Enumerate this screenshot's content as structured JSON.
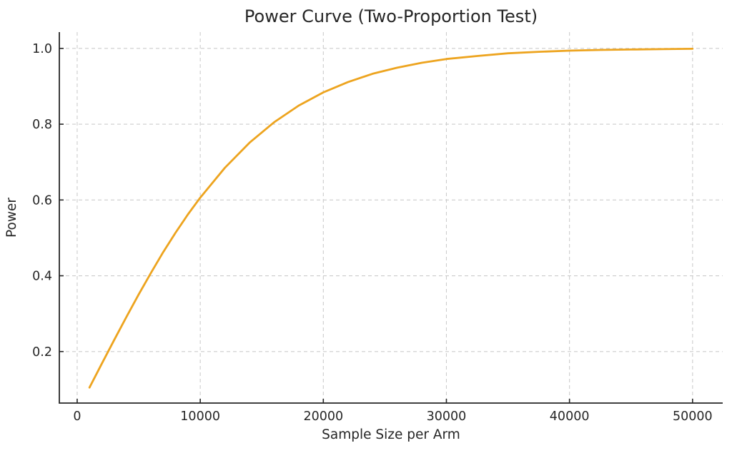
{
  "chart_data": {
    "type": "line",
    "title": "Power Curve (Two-Proportion Test)",
    "xlabel": "Sample Size per Arm",
    "ylabel": "Power",
    "x_ticks": [
      0,
      10000,
      20000,
      30000,
      40000,
      50000
    ],
    "x_tick_labels": [
      "0",
      "10000",
      "20000",
      "30000",
      "40000",
      "50000"
    ],
    "y_ticks": [
      0.2,
      0.4,
      0.6,
      0.8,
      1.0
    ],
    "y_tick_labels": [
      "0.2",
      "0.4",
      "0.6",
      "0.8",
      "1.0"
    ],
    "xlim": [
      -1450,
      52450
    ],
    "ylim": [
      0.064,
      1.043
    ],
    "grid": true,
    "grid_style": "dashed",
    "legend_position": "none",
    "line_color": "#EDA41F",
    "grid_color": "#cccccc",
    "axis_color": "#262626",
    "text_color": "#262626",
    "background_color": "#ffffff",
    "series": [
      {
        "name": "power",
        "x": [
          1000,
          2000,
          3000,
          4000,
          5000,
          6000,
          7000,
          8000,
          9000,
          10000,
          12000,
          14000,
          16000,
          18000,
          20000,
          22000,
          24000,
          26000,
          28000,
          30000,
          32500,
          35000,
          37500,
          40000,
          42500,
          45000,
          47500,
          50000
        ],
        "y": [
          0.105,
          0.168,
          0.23,
          0.291,
          0.351,
          0.408,
          0.463,
          0.514,
          0.562,
          0.606,
          0.685,
          0.751,
          0.805,
          0.849,
          0.884,
          0.911,
          0.933,
          0.949,
          0.962,
          0.972,
          0.98,
          0.987,
          0.991,
          0.994,
          0.996,
          0.997,
          0.998,
          0.999
        ]
      }
    ]
  }
}
